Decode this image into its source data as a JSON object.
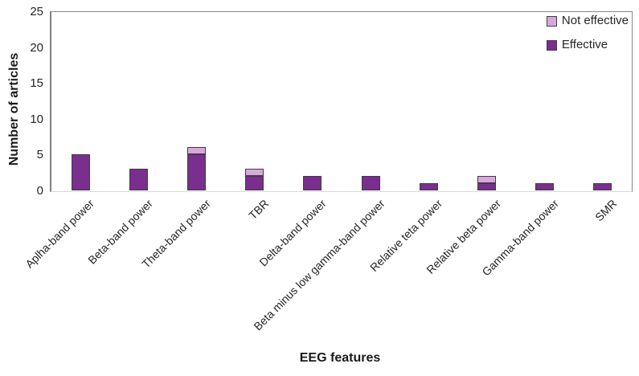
{
  "chart_data": {
    "type": "bar",
    "stacked": true,
    "xlabel": "EEG features",
    "ylabel": "Number of articles",
    "ylim": [
      0,
      25
    ],
    "yticks": [
      0,
      5,
      10,
      15,
      20,
      25
    ],
    "grid": false,
    "legend_position": "top-right-inside",
    "categories": [
      "Aplha-band power",
      "Beta-band power",
      "Theta-band power",
      "TBR",
      "Delta-band power",
      "Beta minus low gamma-band power",
      "Relative teta power",
      "Relative beta power",
      "Gamma-band power",
      "SMR"
    ],
    "series": [
      {
        "name": "Effective",
        "color": "#7a2e8e",
        "values": [
          5,
          3,
          5,
          2,
          2,
          2,
          1,
          1,
          1,
          1
        ]
      },
      {
        "name": "Not effective",
        "color": "#d8a8dd",
        "values": [
          0,
          0,
          1,
          1,
          0,
          0,
          0,
          1,
          0,
          0
        ]
      }
    ],
    "legend_order": [
      1,
      0
    ]
  }
}
